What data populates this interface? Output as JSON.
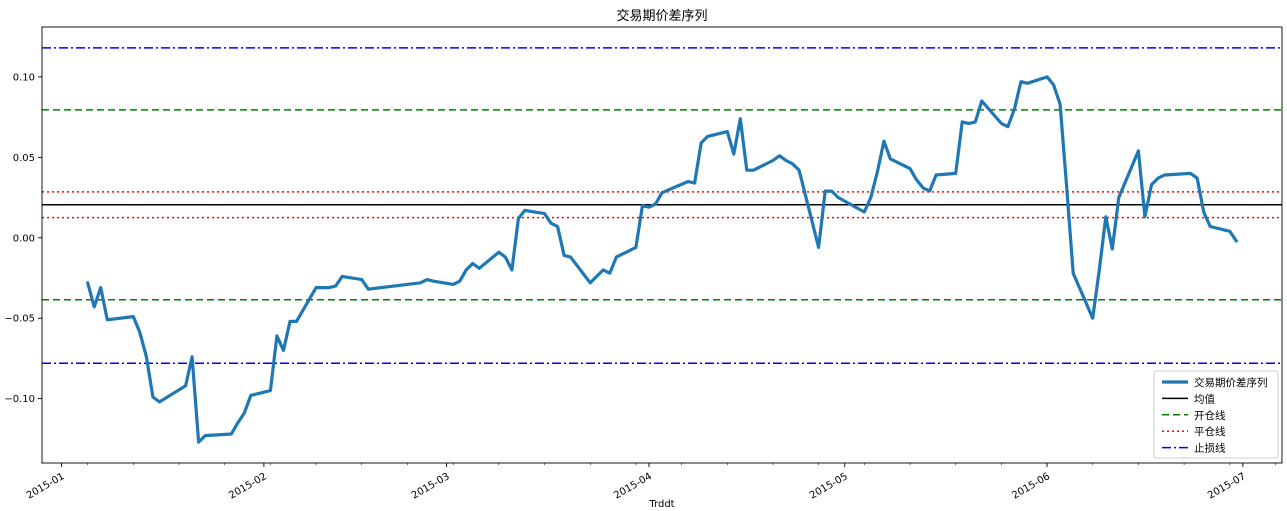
{
  "chart_data": {
    "type": "line",
    "title": "交易期价差序列",
    "xlabel": "Trddt",
    "ylabel": "",
    "xlim": [
      "2014-12-29",
      "2015-07-07"
    ],
    "ylim": [
      -0.14,
      0.131
    ],
    "x_ticks": [
      {
        "date": "2015-01-01",
        "label": "2015-01"
      },
      {
        "date": "2015-02-01",
        "label": "2015-02"
      },
      {
        "date": "2015-03-01",
        "label": "2015-03"
      },
      {
        "date": "2015-04-01",
        "label": "2015-04"
      },
      {
        "date": "2015-05-01",
        "label": "2015-05"
      },
      {
        "date": "2015-06-01",
        "label": "2015-06"
      },
      {
        "date": "2015-07-01",
        "label": "2015-07"
      }
    ],
    "y_ticks": [
      {
        "value": 0.1,
        "label": "0.10"
      },
      {
        "value": 0.05,
        "label": "0.05"
      },
      {
        "value": 0.0,
        "label": "0.00"
      },
      {
        "value": -0.05,
        "label": "−0.05"
      },
      {
        "value": -0.1,
        "label": "−0.10"
      }
    ],
    "grid": false,
    "legend_position": "bottom-right",
    "series": [
      {
        "name": "交易期价差序列",
        "color": "#1f77b4",
        "style": "solid",
        "x": [
          "2015-01-05",
          "2015-01-06",
          "2015-01-07",
          "2015-01-08",
          "2015-01-12",
          "2015-01-13",
          "2015-01-14",
          "2015-01-15",
          "2015-01-16",
          "2015-01-20",
          "2015-01-21",
          "2015-01-22",
          "2015-01-23",
          "2015-01-27",
          "2015-01-28",
          "2015-01-29",
          "2015-01-30",
          "2015-02-02",
          "2015-02-03",
          "2015-02-04",
          "2015-02-05",
          "2015-02-06",
          "2015-02-09",
          "2015-02-10",
          "2015-02-11",
          "2015-02-12",
          "2015-02-13",
          "2015-02-16",
          "2015-02-17",
          "2015-02-25",
          "2015-02-26",
          "2015-02-27",
          "2015-03-02",
          "2015-03-03",
          "2015-03-04",
          "2015-03-05",
          "2015-03-06",
          "2015-03-09",
          "2015-03-10",
          "2015-03-11",
          "2015-03-12",
          "2015-03-13",
          "2015-03-16",
          "2015-03-17",
          "2015-03-18",
          "2015-03-19",
          "2015-03-20",
          "2015-03-23",
          "2015-03-24",
          "2015-03-25",
          "2015-03-26",
          "2015-03-27",
          "2015-03-30",
          "2015-03-31",
          "2015-04-01",
          "2015-04-02",
          "2015-04-03",
          "2015-04-07",
          "2015-04-08",
          "2015-04-09",
          "2015-04-10",
          "2015-04-13",
          "2015-04-14",
          "2015-04-15",
          "2015-04-16",
          "2015-04-17",
          "2015-04-20",
          "2015-04-21",
          "2015-04-22",
          "2015-04-23",
          "2015-04-24",
          "2015-04-27",
          "2015-04-28",
          "2015-04-29",
          "2015-04-30",
          "2015-05-04",
          "2015-05-05",
          "2015-05-06",
          "2015-05-07",
          "2015-05-08",
          "2015-05-11",
          "2015-05-12",
          "2015-05-13",
          "2015-05-14",
          "2015-05-15",
          "2015-05-18",
          "2015-05-19",
          "2015-05-20",
          "2015-05-21",
          "2015-05-22",
          "2015-05-25",
          "2015-05-26",
          "2015-05-27",
          "2015-05-28",
          "2015-05-29",
          "2015-06-01",
          "2015-06-02",
          "2015-06-03",
          "2015-06-04",
          "2015-06-05",
          "2015-06-08",
          "2015-06-09",
          "2015-06-10",
          "2015-06-11",
          "2015-06-12",
          "2015-06-15",
          "2015-06-16",
          "2015-06-17",
          "2015-06-18",
          "2015-06-19",
          "2015-06-23",
          "2015-06-24",
          "2015-06-25",
          "2015-06-26",
          "2015-06-29",
          "2015-06-30"
        ],
        "values": [
          -0.028,
          -0.043,
          -0.031,
          -0.051,
          -0.049,
          -0.059,
          -0.074,
          -0.099,
          -0.102,
          -0.092,
          -0.074,
          -0.127,
          -0.123,
          -0.122,
          -0.115,
          -0.109,
          -0.098,
          -0.095,
          -0.061,
          -0.07,
          -0.052,
          -0.052,
          -0.031,
          -0.031,
          -0.031,
          -0.03,
          -0.024,
          -0.026,
          -0.032,
          -0.028,
          -0.026,
          -0.027,
          -0.029,
          -0.027,
          -0.02,
          -0.016,
          -0.019,
          -0.009,
          -0.012,
          -0.02,
          0.012,
          0.017,
          0.015,
          0.009,
          0.007,
          -0.011,
          -0.012,
          -0.028,
          -0.024,
          -0.02,
          -0.022,
          -0.012,
          -0.006,
          0.02,
          0.019,
          0.021,
          0.028,
          0.035,
          0.034,
          0.059,
          0.063,
          0.066,
          0.052,
          0.074,
          0.042,
          0.042,
          0.048,
          0.051,
          0.048,
          0.046,
          0.042,
          -0.006,
          0.029,
          0.029,
          0.025,
          0.016,
          0.025,
          0.041,
          0.06,
          0.049,
          0.043,
          0.036,
          0.031,
          0.029,
          0.039,
          0.04,
          0.072,
          0.071,
          0.072,
          0.085,
          0.071,
          0.069,
          0.08,
          0.097,
          0.096,
          0.1,
          0.095,
          0.083,
          0.032,
          -0.022,
          -0.05,
          -0.02,
          0.013,
          -0.007,
          0.025,
          0.054,
          0.013,
          0.033,
          0.037,
          0.039,
          0.04,
          0.037,
          0.016,
          0.007,
          0.004,
          -0.002
        ]
      },
      {
        "name": "均值",
        "color": "#000000",
        "style": "solid",
        "y": 0.0205
      },
      {
        "name": "开仓线",
        "color": "#008000",
        "style": "dashed",
        "y": [
          0.0795,
          -0.0385
        ]
      },
      {
        "name": "平仓线",
        "color": "#ff0000",
        "style": "dotted",
        "y": [
          0.0285,
          0.0125
        ]
      },
      {
        "name": "止损线",
        "color": "#0000ff",
        "style": "dashdot",
        "y": [
          0.118,
          -0.078
        ]
      }
    ]
  }
}
